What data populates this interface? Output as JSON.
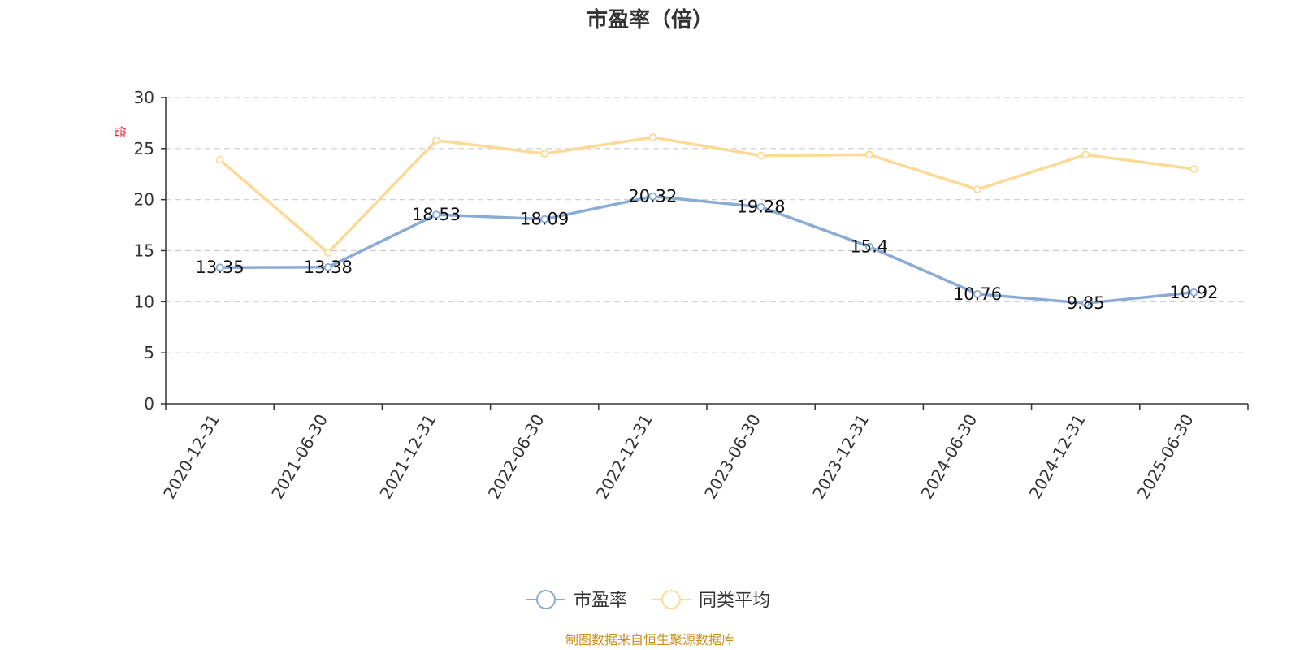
{
  "chart_data": {
    "type": "line",
    "title": "市盈率（倍）",
    "unit_label": "倍",
    "categories": [
      "2020-12-31",
      "2021-06-30",
      "2021-12-31",
      "2022-06-30",
      "2022-12-31",
      "2023-06-30",
      "2023-12-31",
      "2024-06-30",
      "2024-12-31",
      "2025-06-30"
    ],
    "series": [
      {
        "name": "市盈率",
        "color": "#8aabd6",
        "values": [
          13.35,
          13.38,
          18.53,
          18.09,
          20.32,
          19.28,
          15.4,
          10.76,
          9.85,
          10.92
        ],
        "labels": [
          "13.35",
          "13.38",
          "18.53",
          "18.09",
          "20.32",
          "19.28",
          "15.4",
          "10.76",
          "9.85",
          "10.92"
        ]
      },
      {
        "name": "同类平均",
        "color": "#fcd994",
        "values": [
          23.9,
          14.8,
          25.8,
          24.5,
          26.1,
          24.3,
          24.4,
          21.0,
          24.4,
          23.0
        ]
      }
    ],
    "yticks": [
      "0",
      "5",
      "10",
      "15",
      "20",
      "25",
      "30"
    ],
    "ylim": [
      0,
      30
    ],
    "grid": true,
    "legend_position": "bottom-center",
    "source": "制图数据来自恒生聚源数据库"
  }
}
